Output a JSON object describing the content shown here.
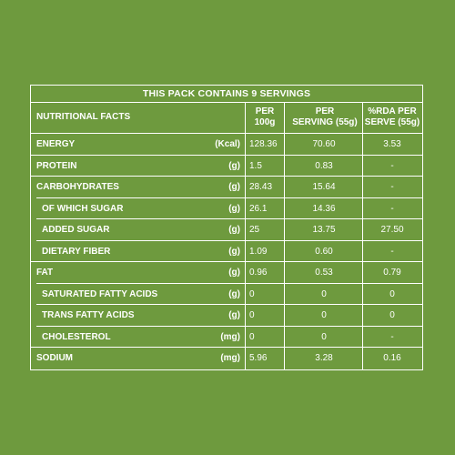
{
  "title": "THIS PACK CONTAINS 9 SERVINGS",
  "columns": {
    "nutrient": "NUTRITIONAL FACTS",
    "per100g_line1": "PER",
    "per100g_line2": "100g",
    "perserving_line1": "PER",
    "perserving_line2": "SERVING (55g)",
    "rda_line1": "%RDA PER",
    "rda_line2": "SERVE (55g)"
  },
  "rows": [
    {
      "name": "ENERGY",
      "unit": "(Kcal)",
      "per100g": "128.36",
      "perserving": "70.60",
      "rda": "3.53"
    },
    {
      "name": "PROTEIN",
      "unit": "(g)",
      "per100g": "1.5",
      "perserving": "0.83",
      "rda": "-"
    },
    {
      "name": "CARBOHYDRATES",
      "unit": "(g)",
      "per100g": "28.43",
      "perserving": "15.64",
      "rda": "-"
    },
    {
      "name": "OF WHICH SUGAR",
      "unit": "(g)",
      "per100g": "26.1",
      "perserving": "14.36",
      "rda": "-"
    },
    {
      "name": "ADDED SUGAR",
      "unit": "(g)",
      "per100g": "25",
      "perserving": "13.75",
      "rda": "27.50"
    },
    {
      "name": "DIETARY FIBER",
      "unit": "(g)",
      "per100g": "1.09",
      "perserving": "0.60",
      "rda": "-"
    },
    {
      "name": "FAT",
      "unit": "(g)",
      "per100g": "0.96",
      "perserving": "0.53",
      "rda": "0.79"
    },
    {
      "name": "SATURATED FATTY ACIDS",
      "unit": "(g)",
      "per100g": "0",
      "perserving": "0",
      "rda": "0"
    },
    {
      "name": "TRANS FATTY ACIDS",
      "unit": "(g)",
      "per100g": "0",
      "perserving": "0",
      "rda": "0"
    },
    {
      "name": "CHOLESTEROL",
      "unit": "(mg)",
      "per100g": "0",
      "perserving": "0",
      "rda": "-"
    },
    {
      "name": "SODIUM",
      "unit": "(mg)",
      "per100g": "5.96",
      "perserving": "3.28",
      "rda": "0.16"
    }
  ],
  "colors": {
    "background": "#6e9a3e",
    "text": "#ffffff"
  }
}
